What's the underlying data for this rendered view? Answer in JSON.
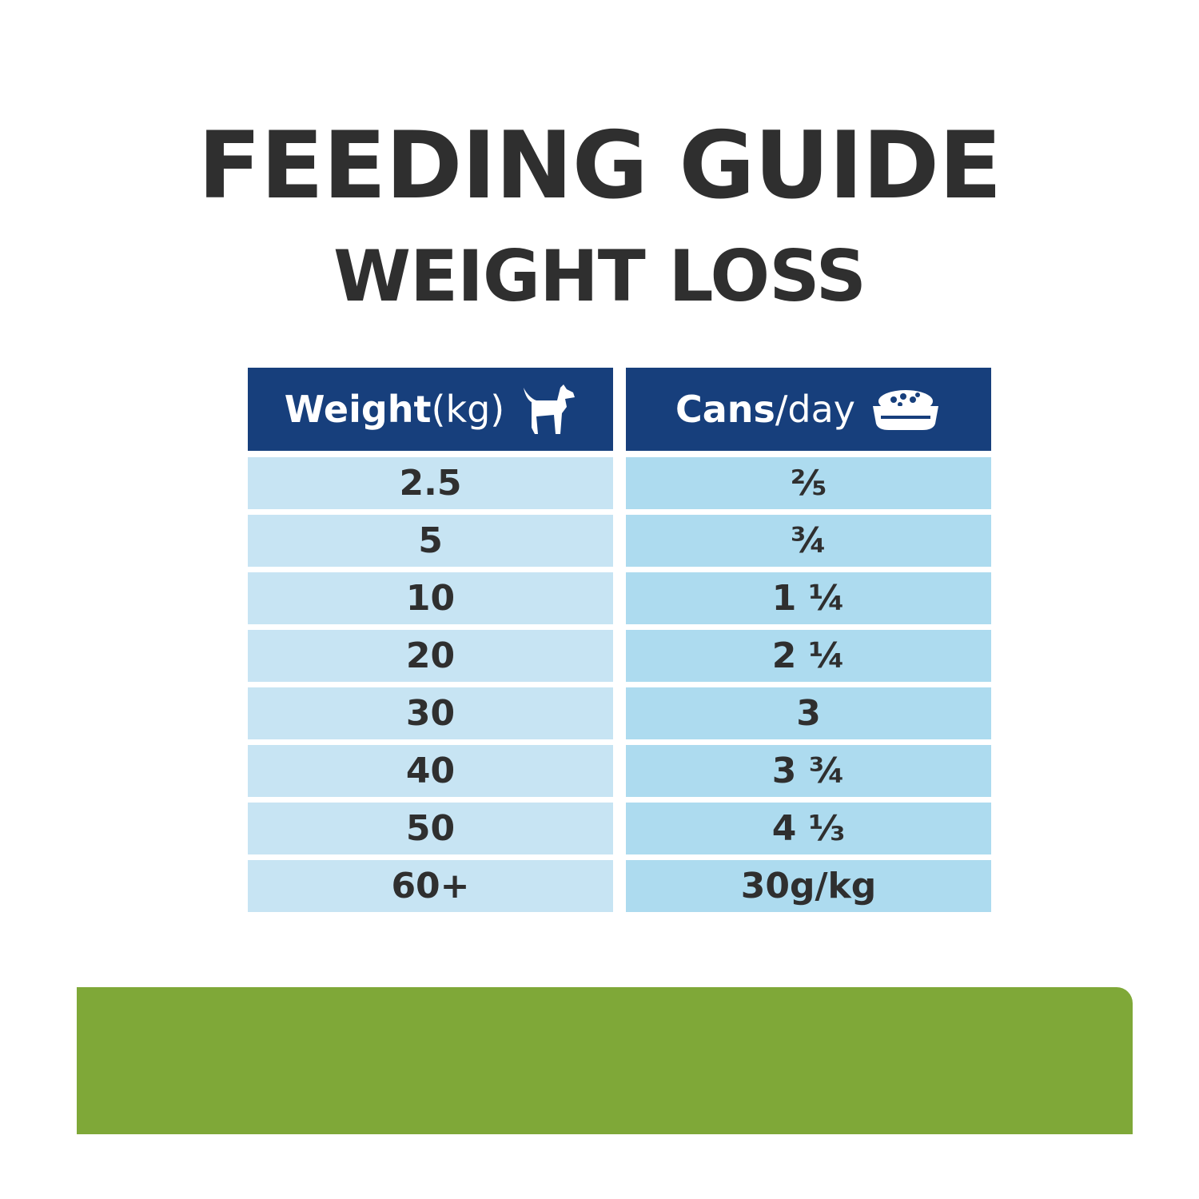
{
  "title": "FEEDING GUIDE",
  "subtitle": "WEIGHT LOSS",
  "table": {
    "header_left": {
      "bold": "Weight",
      "normal": " (kg)",
      "icon": "dog-icon"
    },
    "header_right": {
      "bold": "Cans",
      "normal": "/day",
      "icon": "food-bowl-icon"
    },
    "rows": [
      {
        "weight": "2.5",
        "cans": "⅖"
      },
      {
        "weight": "5",
        "cans": "¾"
      },
      {
        "weight": "10",
        "cans": "1 ¼"
      },
      {
        "weight": "20",
        "cans": "2 ¼"
      },
      {
        "weight": "30",
        "cans": "3"
      },
      {
        "weight": "40",
        "cans": "3 ¾"
      },
      {
        "weight": "50",
        "cans": "4 ⅓"
      },
      {
        "weight": "60+",
        "cans": "30g/kg"
      }
    ]
  },
  "colors": {
    "header": "#173f7c",
    "cell_left": "#c7e4f3",
    "cell_right": "#addbef",
    "text": "#2f2f2f",
    "green_bar": "#7fa838"
  }
}
